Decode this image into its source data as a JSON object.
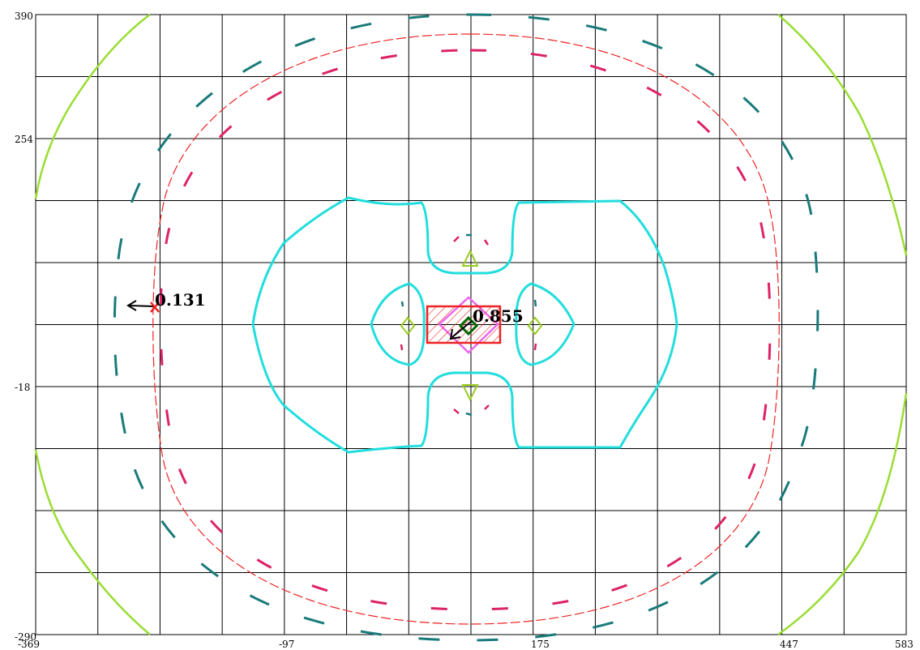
{
  "chart_data": {
    "type": "contour",
    "title": "",
    "xlabel": "",
    "ylabel": "",
    "xlim": [
      -369,
      583
    ],
    "ylim": [
      -290,
      390
    ],
    "grid": true,
    "x_tick_labels": [
      "-369",
      "-97",
      "175",
      "447",
      "583"
    ],
    "y_tick_labels": [
      "390",
      "254",
      "-18",
      "-290"
    ],
    "annotations": [
      {
        "text": "0.131",
        "x": -220,
        "y": 70,
        "marker": "x"
      },
      {
        "text": "0.855",
        "x": 40,
        "y": 48,
        "marker": "square"
      }
    ],
    "colors": {
      "grid": "#000000",
      "outer_contour": "#99dd33",
      "teal_dashed": "#1a7a7a",
      "crimson_dashed": "#dd2266",
      "red_dashed": "#ee2222",
      "cyan_contour": "#22dddd",
      "load_patch": "#ee2222",
      "column": "#ee66ee",
      "marker_green": "#99cc22",
      "marker_dark": "#006600"
    }
  }
}
